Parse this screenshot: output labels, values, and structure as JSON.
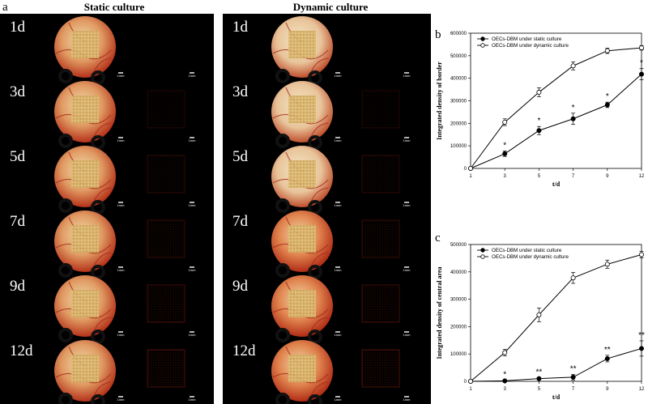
{
  "figure": {
    "panel_a": "a",
    "panel_b": "b",
    "panel_c": "c",
    "static_title": "Static culture",
    "dynamic_title": "Dynamic culture",
    "days": [
      "1d",
      "3d",
      "5d",
      "7d",
      "9d",
      "12d"
    ],
    "scale_bar_label": "1mm",
    "colors": {
      "background": "#000000",
      "membrane_red": "#c8381e",
      "membrane_pale": "#e8d8a8",
      "scaffold": "#d6b36a",
      "fluor": "#7a1a10"
    }
  },
  "chart_data": [
    {
      "type": "line",
      "panel": "b",
      "x": [
        "1",
        "3",
        "5",
        "7",
        "9",
        "12"
      ],
      "xlabel": "t/d",
      "ylabel": "Integrated density of border",
      "ylim": [
        0,
        600000
      ],
      "yticks": [
        "0",
        "100000",
        "200000",
        "300000",
        "400000",
        "500000",
        "600000"
      ],
      "legend_position": "top-left",
      "series": [
        {
          "name": "OECs-DBM under static culture",
          "marker": "filled",
          "values": [
            0,
            65000,
            168000,
            220000,
            282000,
            418000
          ],
          "errors": [
            0,
            12000,
            18000,
            25000,
            12000,
            25000
          ],
          "annotations": [
            "",
            "*",
            "*",
            "*",
            "*",
            "*"
          ]
        },
        {
          "name": "OECs-DBM under dynamic culture",
          "marker": "open",
          "values": [
            0,
            205000,
            338000,
            455000,
            522000,
            535000
          ],
          "errors": [
            0,
            15000,
            20000,
            18000,
            12000,
            10000
          ]
        }
      ]
    },
    {
      "type": "line",
      "panel": "c",
      "x": [
        "1",
        "3",
        "5",
        "7",
        "9",
        "12"
      ],
      "xlabel": "t/d",
      "ylabel": "Integrated density of central area",
      "ylim": [
        0,
        500000
      ],
      "yticks": [
        "0",
        "100000",
        "200000",
        "300000",
        "400000",
        "500000"
      ],
      "legend_position": "top-left",
      "series": [
        {
          "name": "OECs-DBM under static culture",
          "marker": "filled",
          "values": [
            0,
            2000,
            10000,
            15000,
            83000,
            120000
          ],
          "errors": [
            0,
            2000,
            3000,
            10000,
            12000,
            28000
          ],
          "annotations": [
            "",
            "*",
            "**",
            "**",
            "**",
            "**"
          ]
        },
        {
          "name": "OECs-DBM under dynamic culture",
          "marker": "open",
          "values": [
            0,
            105000,
            243000,
            378000,
            428000,
            463000
          ],
          "errors": [
            0,
            12000,
            25000,
            20000,
            15000,
            12000
          ]
        }
      ]
    }
  ]
}
